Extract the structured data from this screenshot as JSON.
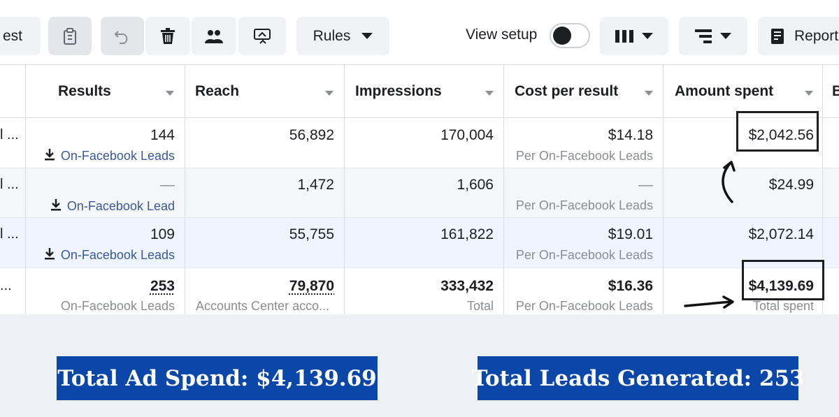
{
  "toolbar": {
    "test_fragment": "est",
    "rules_label": "Rules",
    "view_setup_label": "View setup",
    "reports_label": "Report"
  },
  "table": {
    "headers": {
      "results": "Results",
      "reach": "Reach",
      "impressions": "Impressions",
      "cost_per_result": "Cost per result",
      "amount_spent": "Amount spent",
      "next_fragment": "B"
    },
    "rows": [
      {
        "name_fragment": "l ...",
        "results": "144",
        "results_type": "On-Facebook Leads",
        "reach": "56,892",
        "impressions": "170,004",
        "cost_per_result": "$14.18",
        "cost_per_result_sub": "Per On-Facebook Leads",
        "amount_spent": "$2,042.56"
      },
      {
        "name_fragment": "l ...",
        "results": "—",
        "results_type": "On-Facebook Lead",
        "reach": "1,472",
        "impressions": "1,606",
        "cost_per_result": "—",
        "cost_per_result_sub": "Per On-Facebook Leads",
        "amount_spent": "$24.99"
      },
      {
        "name_fragment": "l ...",
        "results": "109",
        "results_type": "On-Facebook Leads",
        "reach": "55,755",
        "impressions": "161,822",
        "cost_per_result": "$19.01",
        "cost_per_result_sub": "Per On-Facebook Leads",
        "amount_spent": "$2,072.14"
      }
    ],
    "totals": {
      "name_fragment": "...",
      "results": "253",
      "results_sub": "On-Facebook Leads",
      "reach": "79,870",
      "reach_sub": "Accounts Center acco...",
      "impressions": "333,432",
      "impressions_sub": "Total",
      "cost_per_result": "$16.36",
      "cost_per_result_sub": "Per On-Facebook Leads",
      "amount_spent": "$4,139.69",
      "amount_spent_sub": "Total spent"
    }
  },
  "banners": {
    "ad_spend": "Total Ad Spend: $4,139.69",
    "leads": "Total Leads Generated: 253"
  },
  "colors": {
    "banner_bg": "#0b47a8",
    "link": "#385898",
    "selected_row": "#eef5ff",
    "hover_row": "#f5f6f7"
  }
}
